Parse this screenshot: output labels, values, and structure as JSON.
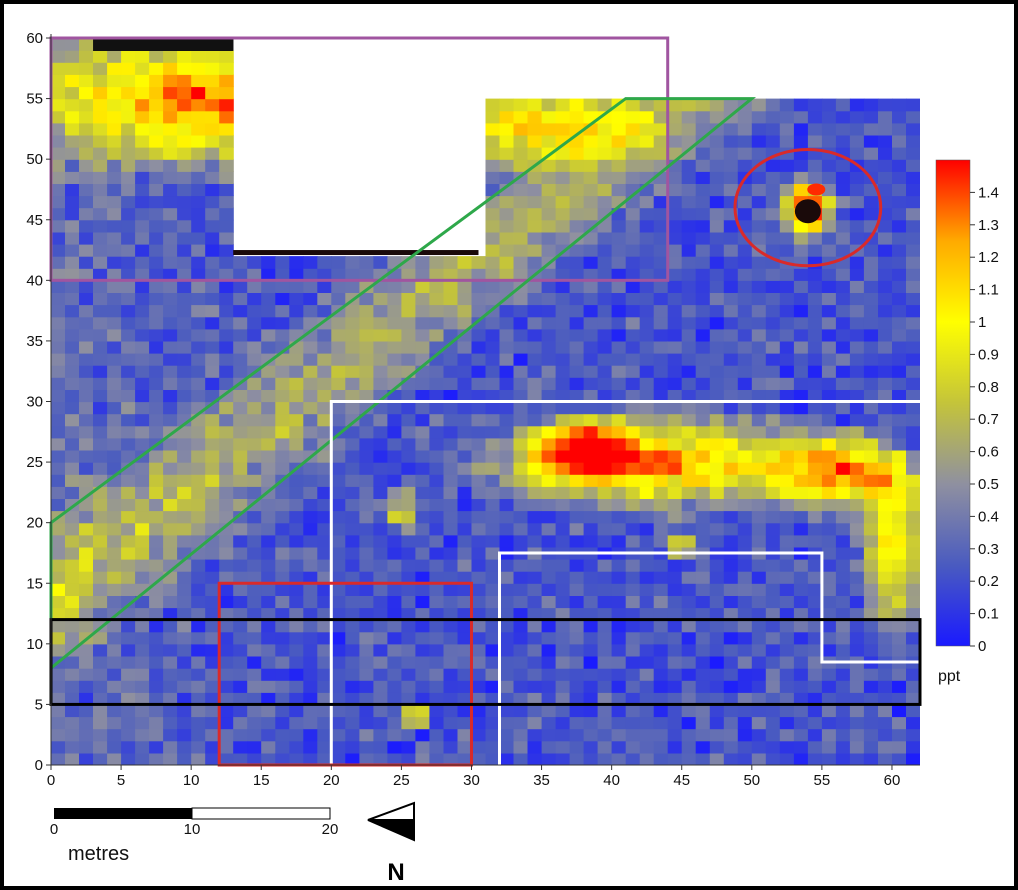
{
  "map": {
    "x_ticks": [
      "0",
      "5",
      "10",
      "15",
      "20",
      "25",
      "30",
      "35",
      "40",
      "45",
      "50",
      "55",
      "60"
    ],
    "y_ticks": [
      "0",
      "5",
      "10",
      "15",
      "20",
      "25",
      "30",
      "35",
      "40",
      "45",
      "50",
      "55",
      "60"
    ],
    "x_range": [
      0,
      62
    ],
    "y_range": [
      0,
      60
    ],
    "data_extent": {
      "x": [
        0,
        62
      ],
      "y": [
        0,
        55
      ]
    },
    "missing_area": {
      "x": [
        13,
        30.5
      ],
      "y": [
        42.5,
        60
      ]
    },
    "survey_strip_upper_left": {
      "x": [
        0,
        13
      ],
      "y": [
        55,
        60
      ]
    },
    "hotspots": [
      {
        "x": 12,
        "y": 55,
        "rx": 14,
        "ry": 5,
        "level": 1.2
      },
      {
        "x": 34,
        "y": 53,
        "rx": 8,
        "ry": 3,
        "level": 1.0
      },
      {
        "x": 54,
        "y": 46,
        "rx": 1.8,
        "ry": 2.2,
        "level": 1.5
      },
      {
        "x": 44,
        "y": 25,
        "rx": 12,
        "ry": 3.5,
        "level": 1.1
      },
      {
        "x": 57,
        "y": 24,
        "rx": 5,
        "ry": 3,
        "level": 1.0
      },
      {
        "x": 60,
        "y": 18,
        "rx": 2,
        "ry": 6,
        "level": 1.0
      },
      {
        "x": 38,
        "y": 26,
        "rx": 4,
        "ry": 2.5,
        "level": 1.1
      },
      {
        "x": 26,
        "y": 4,
        "rx": 1,
        "ry": 1,
        "level": 0.8
      },
      {
        "x": 45,
        "y": 18,
        "rx": 1.2,
        "ry": 1,
        "level": 0.8
      },
      {
        "x": 25,
        "y": 21,
        "rx": 1.2,
        "ry": 1.5,
        "level": 0.7
      }
    ],
    "bands": [
      {
        "kind": "diagonal",
        "from": [
          0,
          14
        ],
        "to": [
          45,
          55
        ],
        "width": 6,
        "level": 0.45
      }
    ],
    "overlays": [
      {
        "name": "purple-rectangle",
        "shape": "rect",
        "color": "#a055a0",
        "x": [
          0,
          44
        ],
        "y": [
          40,
          60
        ]
      },
      {
        "name": "green-parallelogram",
        "shape": "poly",
        "color": "#2ea84a",
        "points": [
          [
            0,
            20
          ],
          [
            41,
            55
          ],
          [
            50,
            55
          ],
          [
            0,
            8
          ]
        ]
      },
      {
        "name": "red-ellipse",
        "shape": "ellipse",
        "color": "#d92a2a",
        "cx": 54,
        "cy": 46,
        "rx": 5.2,
        "ry": 4.8
      },
      {
        "name": "white-outline-large",
        "shape": "polyline",
        "color": "#ffffff",
        "points": [
          [
            20,
            0
          ],
          [
            20,
            30
          ],
          [
            62,
            30
          ]
        ]
      },
      {
        "name": "white-outline-small",
        "shape": "polyline",
        "color": "#ffffff",
        "points": [
          [
            32,
            0
          ],
          [
            32,
            17.5
          ],
          [
            55,
            17.5
          ],
          [
            55,
            8.5
          ],
          [
            62,
            8.5
          ]
        ]
      },
      {
        "name": "red-rectangle",
        "shape": "rect",
        "color": "#d92a2a",
        "x": [
          12,
          30
        ],
        "y": [
          0,
          15
        ]
      },
      {
        "name": "black-rectangle",
        "shape": "rect",
        "color": "#000000",
        "x": [
          0,
          62
        ],
        "y": [
          5,
          12
        ]
      }
    ]
  },
  "colorbar": {
    "ticks": [
      "0",
      "0.1",
      "0.2",
      "0.3",
      "0.4",
      "0.5",
      "0.6",
      "0.7",
      "0.8",
      "0.9",
      "1",
      "1.1",
      "1.2",
      "1.3",
      "1.4"
    ],
    "range": [
      0,
      1.5
    ],
    "units": "ppt",
    "colors": [
      "#1a1aff",
      "#4a5bc0",
      "#8f90a0",
      "#c4c43a",
      "#ffff00",
      "#ffaa00",
      "#ff0000"
    ]
  },
  "scale_bar": {
    "labels": [
      "0",
      "10",
      "20"
    ],
    "units": "metres"
  },
  "north_arrow": {
    "label": "N"
  }
}
